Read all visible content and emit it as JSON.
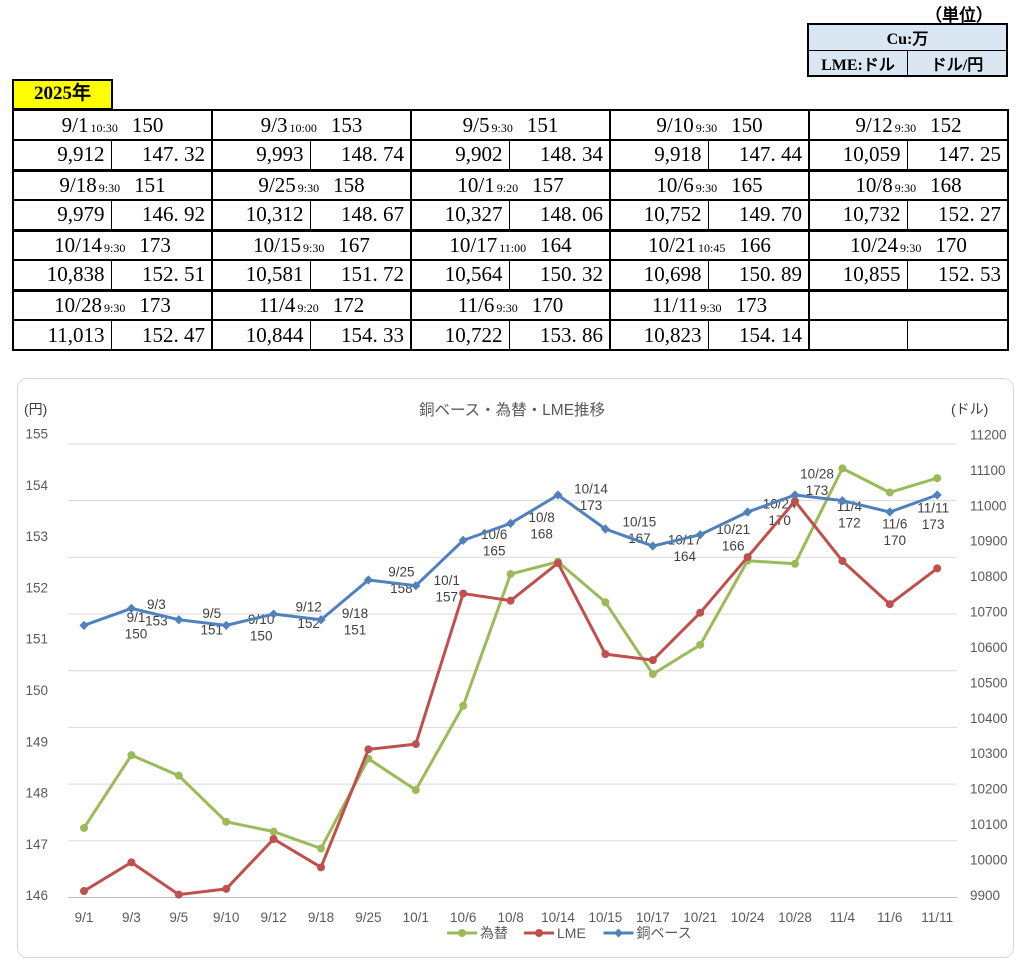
{
  "unit_note": "（単位）",
  "unit_table": {
    "row1": "Cu:万",
    "row2_left": "LME:ドル",
    "row2_right": "ドル/円"
  },
  "year_label": "2025年",
  "data_table": {
    "entries": [
      {
        "date": "9/1",
        "time": "10:30",
        "cu": "150",
        "lme": "9,912",
        "fx": "147. 32"
      },
      {
        "date": "9/3",
        "time": "10:00",
        "cu": "153",
        "lme": "9,993",
        "fx": "148. 74"
      },
      {
        "date": "9/5",
        "time": "9:30",
        "cu": "151",
        "lme": "9,902",
        "fx": "148. 34"
      },
      {
        "date": "9/10",
        "time": "9:30",
        "cu": "150",
        "lme": "9,918",
        "fx": "147. 44"
      },
      {
        "date": "9/12",
        "time": "9:30",
        "cu": "152",
        "lme": "10,059",
        "fx": "147. 25"
      },
      {
        "date": "9/18",
        "time": "9:30",
        "cu": "151",
        "lme": "9,979",
        "fx": "146. 92"
      },
      {
        "date": "9/25",
        "time": "9:30",
        "cu": "158",
        "lme": "10,312",
        "fx": "148. 67"
      },
      {
        "date": "10/1",
        "time": "9:20",
        "cu": "157",
        "lme": "10,327",
        "fx": "148. 06"
      },
      {
        "date": "10/6",
        "time": "9:30",
        "cu": "165",
        "lme": "10,752",
        "fx": "149. 70"
      },
      {
        "date": "10/8",
        "time": "9:30",
        "cu": "168",
        "lme": "10,732",
        "fx": "152. 27"
      },
      {
        "date": "10/14",
        "time": "9:30",
        "cu": "173",
        "lme": "10,838",
        "fx": "152. 51"
      },
      {
        "date": "10/15",
        "time": "9:30",
        "cu": "167",
        "lme": "10,581",
        "fx": "151. 72"
      },
      {
        "date": "10/17",
        "time": "11:00",
        "cu": "164",
        "lme": "10,564",
        "fx": "150. 32"
      },
      {
        "date": "10/21",
        "time": "10:45",
        "cu": "166",
        "lme": "10,698",
        "fx": "150. 89"
      },
      {
        "date": "10/24",
        "time": "9:30",
        "cu": "170",
        "lme": "10,855",
        "fx": "152. 53"
      },
      {
        "date": "10/28",
        "time": "9:30",
        "cu": "173",
        "lme": "11,013",
        "fx": "152. 47"
      },
      {
        "date": "11/4",
        "time": "9:20",
        "cu": "172",
        "lme": "10,844",
        "fx": "154. 33"
      },
      {
        "date": "11/6",
        "time": "9:30",
        "cu": "170",
        "lme": "10,722",
        "fx": "153. 86"
      },
      {
        "date": "11/11",
        "time": "9:30",
        "cu": "173",
        "lme": "10,823",
        "fx": "154. 14"
      }
    ]
  },
  "chart_data": {
    "type": "line",
    "title": "銅ベース・為替・LME推移",
    "left_axis_caption": "(円)",
    "right_axis_caption": "(ドル)",
    "categories": [
      "9/1",
      "9/3",
      "9/5",
      "9/10",
      "9/12",
      "9/18",
      "9/25",
      "10/1",
      "10/6",
      "10/8",
      "10/14",
      "10/15",
      "10/17",
      "10/21",
      "10/24",
      "10/28",
      "11/4",
      "11/6",
      "11/11"
    ],
    "series": [
      {
        "name": "為替",
        "color": "#9BBB59",
        "axis": "left",
        "values": [
          147.32,
          148.74,
          148.34,
          147.44,
          147.25,
          146.92,
          148.67,
          148.06,
          149.7,
          152.27,
          152.51,
          151.72,
          150.32,
          150.89,
          152.53,
          152.47,
          154.33,
          153.86,
          154.14
        ]
      },
      {
        "name": "LME",
        "color": "#C0504D",
        "axis": "right",
        "values": [
          9912,
          9993,
          9902,
          9918,
          10059,
          9979,
          10312,
          10327,
          10752,
          10732,
          10838,
          10581,
          10564,
          10698,
          10855,
          11013,
          10844,
          10722,
          10823
        ]
      },
      {
        "name": "銅ベース",
        "color": "#4F81BD",
        "axis": "hidden",
        "values": [
          150,
          153,
          151,
          150,
          152,
          151,
          158,
          157,
          165,
          168,
          173,
          167,
          164,
          166,
          170,
          173,
          172,
          170,
          173
        ],
        "data_labels": true
      }
    ],
    "left_axis": {
      "min": 146,
      "max": 155,
      "ticks": [
        "155",
        "154",
        "153",
        "152",
        "151",
        "150",
        "149",
        "148",
        "147",
        "146"
      ]
    },
    "right_axis": {
      "min": 9900,
      "max": 11200,
      "ticks": [
        "11200",
        "11100",
        "11000",
        "10900",
        "10800",
        "10700",
        "10600",
        "10500",
        "10400",
        "10300",
        "10200",
        "10100",
        "10000",
        "9900"
      ]
    },
    "hidden_axis": {
      "min": 102,
      "max": 182,
      "note": "copper series scale, gridlines every 10"
    },
    "grid": true,
    "legend_position": "bottom"
  }
}
